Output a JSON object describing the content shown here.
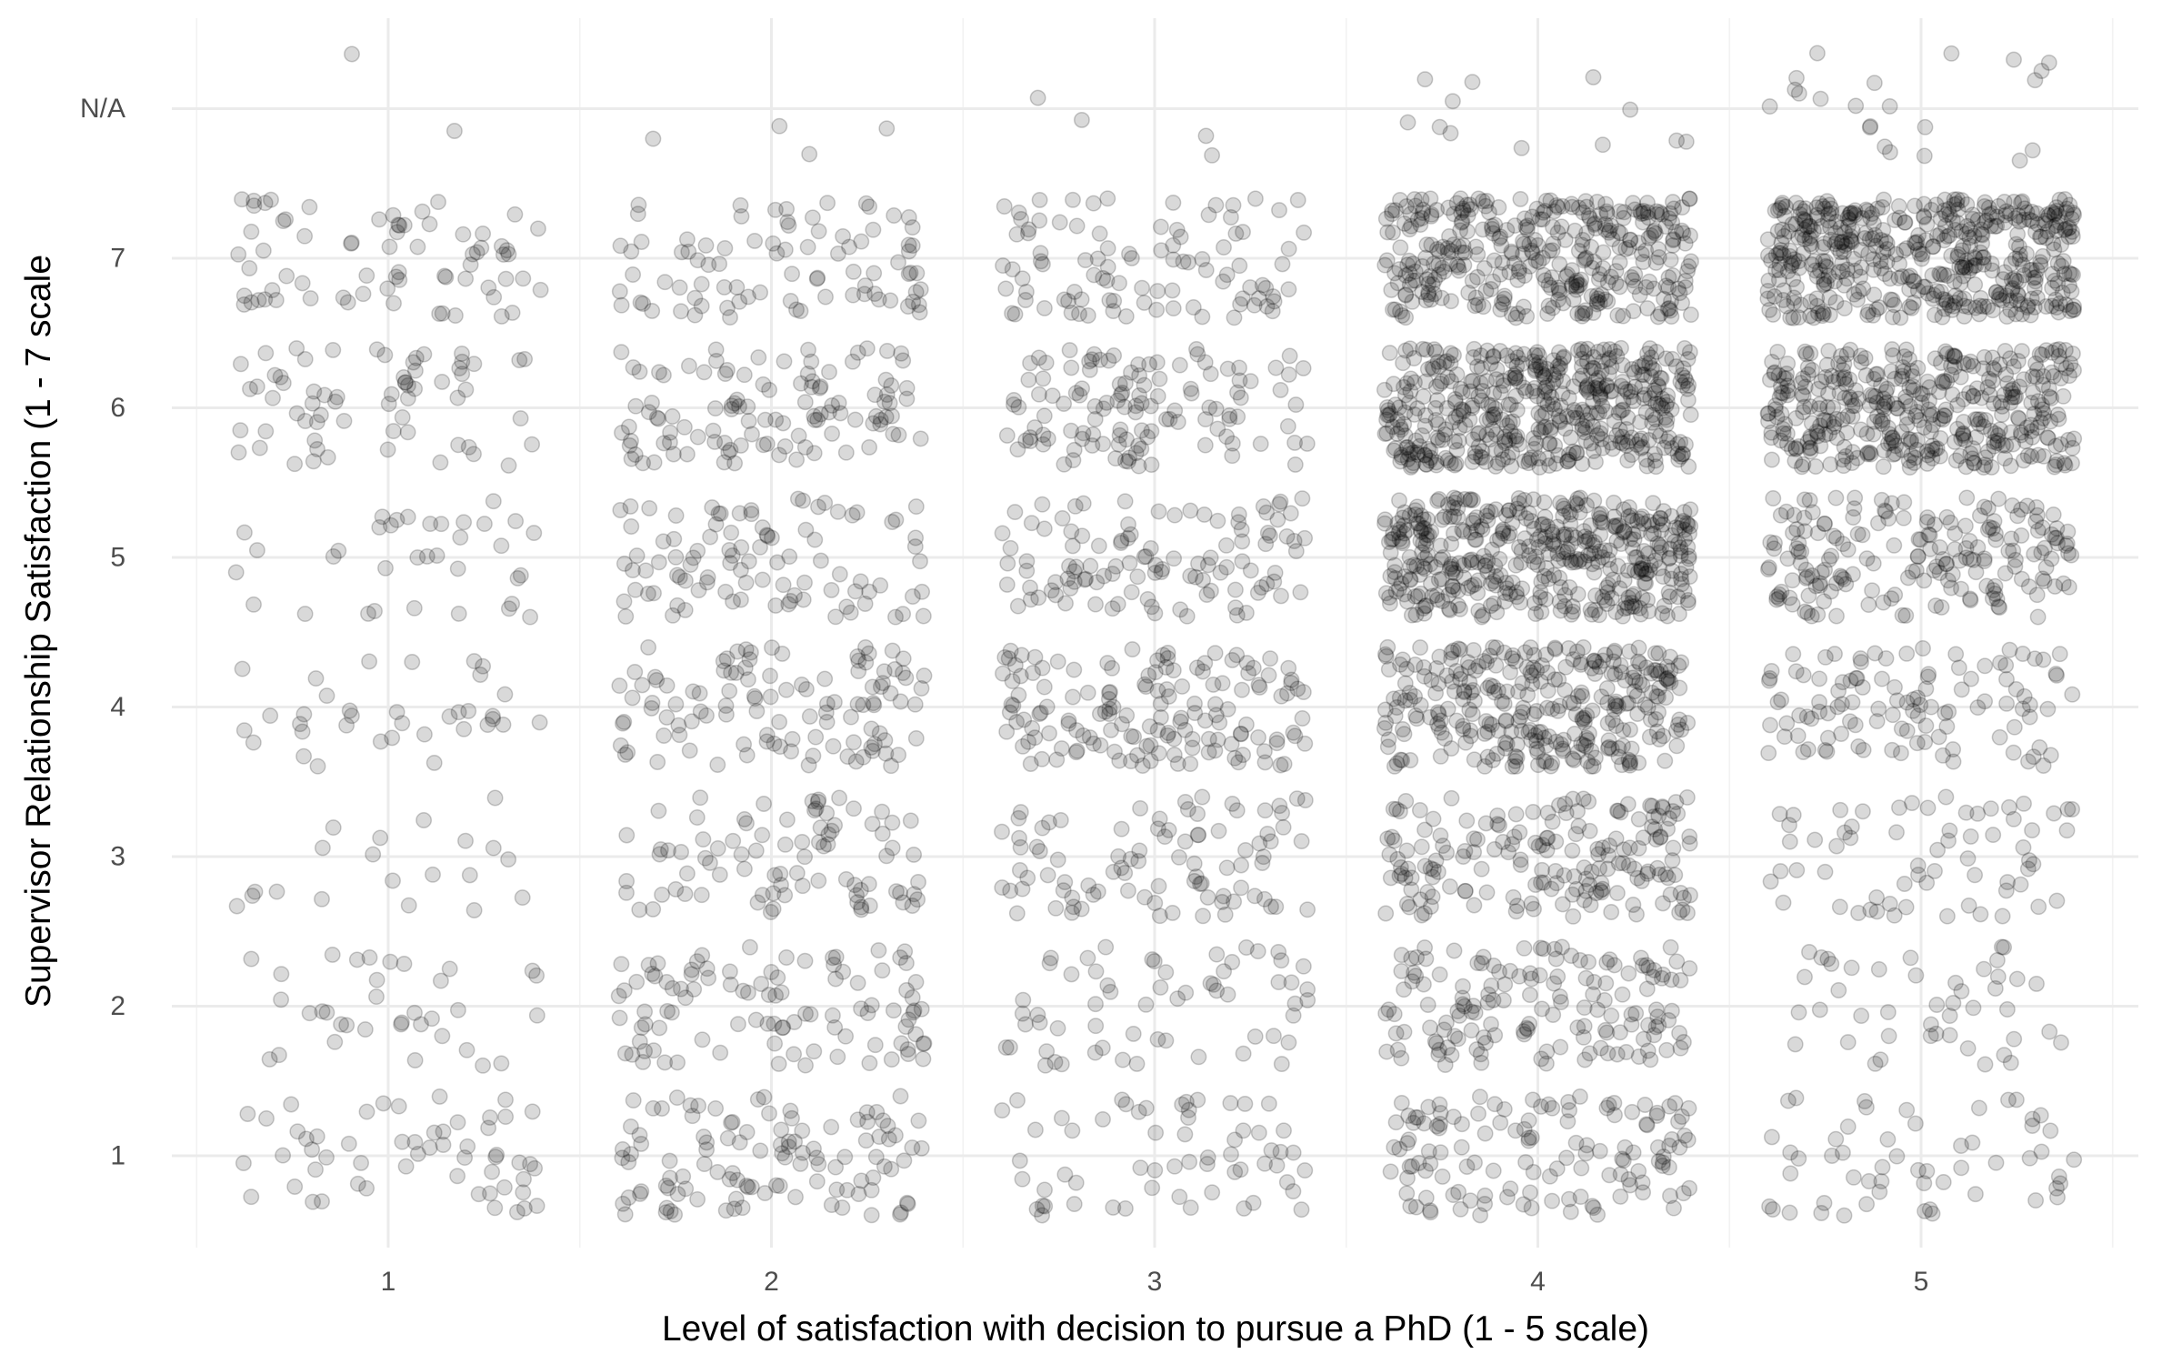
{
  "chart_data": {
    "type": "scatter",
    "jitter": true,
    "title": "",
    "xlabel": "Level of satisfaction with decision to pursue a PhD (1 - 5 scale)",
    "ylabel": "Supervisor Relationship Satisfaction (1 - 7 scale",
    "x_categories": [
      "1",
      "2",
      "3",
      "4",
      "5"
    ],
    "y_categories": [
      "1",
      "2",
      "3",
      "4",
      "5",
      "6",
      "7",
      "N/A"
    ],
    "grid": true,
    "legend": "none",
    "point_color": "#000000",
    "point_alpha": 0.18,
    "counts": [
      [
        55,
        35,
        20,
        35,
        35,
        65,
        70,
        2
      ],
      [
        110,
        100,
        85,
        110,
        95,
        110,
        85,
        4
      ],
      [
        60,
        60,
        90,
        150,
        110,
        120,
        95,
        4
      ],
      [
        130,
        150,
        180,
        310,
        440,
        470,
        360,
        12
      ],
      [
        55,
        45,
        65,
        110,
        190,
        400,
        480,
        22
      ]
    ]
  }
}
